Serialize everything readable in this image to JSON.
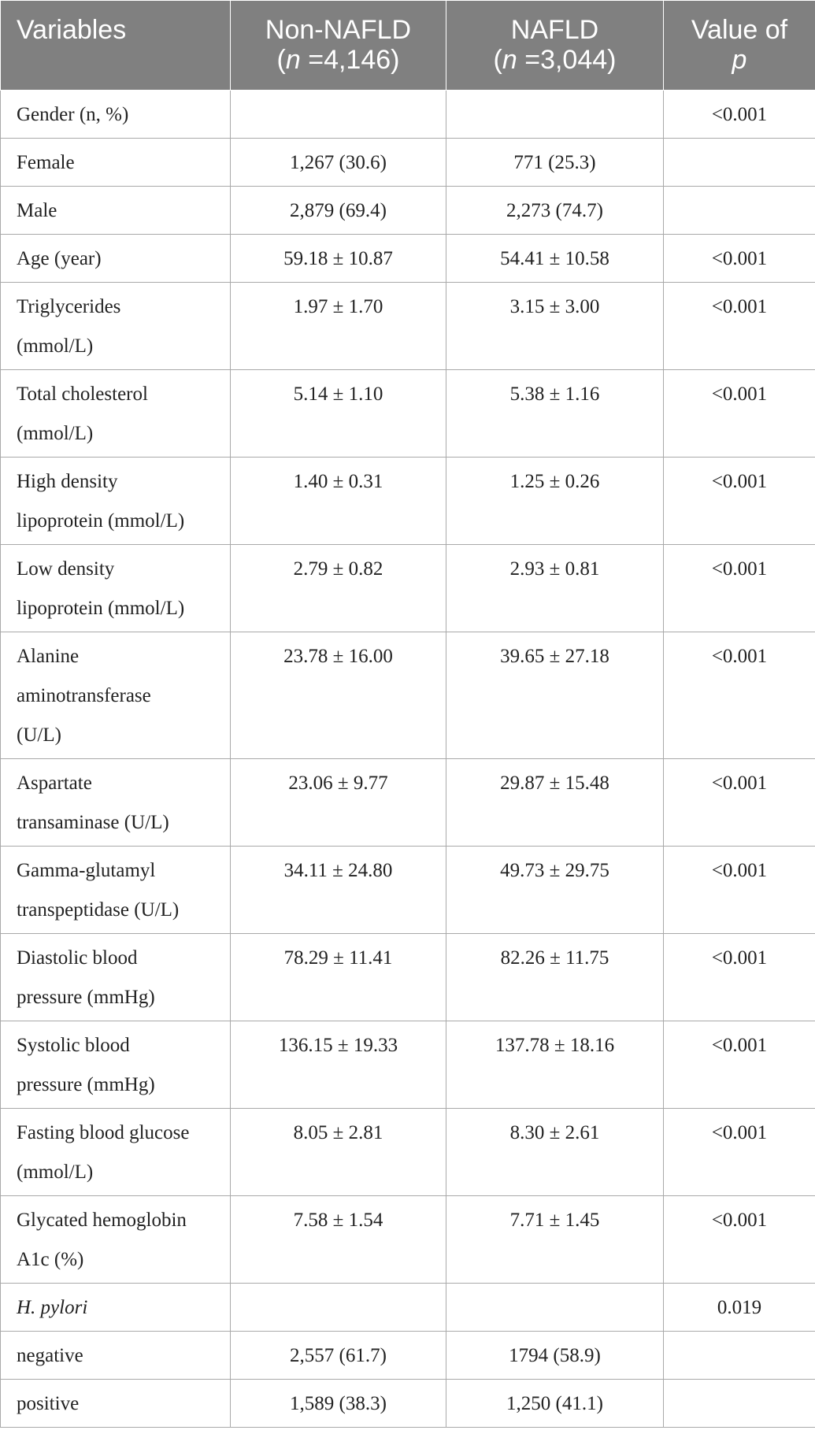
{
  "header": {
    "col0": "Variables",
    "col1_line1": "Non-NAFLD",
    "col1_n": "n",
    "col1_rest": "=4,146)",
    "col2_line1": "NAFLD",
    "col2_n": "n",
    "col2_rest": "=3,044)",
    "col3_line1": "Value of",
    "col3_line2": "p"
  },
  "rows": [
    {
      "label": [
        "Gender (n, %)"
      ],
      "non_nafld": "",
      "nafld": "",
      "p": "<0.001"
    },
    {
      "label": [
        "Female"
      ],
      "non_nafld": "1,267 (30.6)",
      "nafld": "771 (25.3)",
      "p": ""
    },
    {
      "label": [
        "Male"
      ],
      "non_nafld": "2,879 (69.4)",
      "nafld": "2,273 (74.7)",
      "p": ""
    },
    {
      "label": [
        "Age (year)"
      ],
      "non_nafld": "59.18 ± 10.87",
      "nafld": "54.41 ± 10.58",
      "p": "<0.001"
    },
    {
      "label": [
        "Triglycerides",
        "(mmol/L)"
      ],
      "non_nafld": "1.97 ± 1.70",
      "nafld": "3.15 ± 3.00",
      "p": "<0.001"
    },
    {
      "label": [
        "Total cholesterol",
        "(mmol/L)"
      ],
      "non_nafld": "5.14 ± 1.10",
      "nafld": "5.38 ± 1.16",
      "p": "<0.001"
    },
    {
      "label": [
        "High density",
        "lipoprotein (mmol/L)"
      ],
      "non_nafld": "1.40 ± 0.31",
      "nafld": "1.25 ± 0.26",
      "p": "<0.001"
    },
    {
      "label": [
        "Low density",
        "lipoprotein (mmol/L)"
      ],
      "non_nafld": "2.79 ± 0.82",
      "nafld": "2.93 ± 0.81",
      "p": "<0.001"
    },
    {
      "label": [
        "Alanine",
        "aminotransferase",
        "(U/L)"
      ],
      "non_nafld": "23.78 ± 16.00",
      "nafld": "39.65 ± 27.18",
      "p": "<0.001"
    },
    {
      "label": [
        "Aspartate",
        "transaminase (U/L)"
      ],
      "non_nafld": "23.06 ± 9.77",
      "nafld": "29.87 ± 15.48",
      "p": "<0.001"
    },
    {
      "label": [
        "Gamma-glutamyl",
        "transpeptidase (U/L)"
      ],
      "non_nafld": "34.11 ± 24.80",
      "nafld": "49.73 ± 29.75",
      "p": "<0.001"
    },
    {
      "label": [
        "Diastolic blood",
        "pressure (mmHg)"
      ],
      "non_nafld": "78.29 ± 11.41",
      "nafld": "82.26 ± 11.75",
      "p": "<0.001"
    },
    {
      "label": [
        "Systolic blood",
        "pressure (mmHg)"
      ],
      "non_nafld": "136.15 ± 19.33",
      "nafld": "137.78 ± 18.16",
      "p": "<0.001"
    },
    {
      "label": [
        "Fasting blood glucose",
        "(mmol/L)"
      ],
      "non_nafld": "8.05 ± 2.81",
      "nafld": "8.30 ± 2.61",
      "p": "<0.001"
    },
    {
      "label": [
        "Glycated hemoglobin",
        "A1c (%)"
      ],
      "non_nafld": "7.58 ± 1.54",
      "nafld": "7.71 ± 1.45",
      "p": "<0.001"
    },
    {
      "label": [
        "H. pylori"
      ],
      "italic": true,
      "non_nafld": "",
      "nafld": "",
      "p": "0.019"
    },
    {
      "label": [
        "negative"
      ],
      "non_nafld": "2,557 (61.7)",
      "nafld": "1794 (58.9)",
      "p": ""
    },
    {
      "label": [
        "positive"
      ],
      "non_nafld": "1,589 (38.3)",
      "nafld": "1,250  (41.1)",
      "p": ""
    }
  ],
  "colors": {
    "header_bg": "#808080",
    "header_text": "#ffffff",
    "border": "#a9a9a9",
    "body_text": "#222222"
  }
}
